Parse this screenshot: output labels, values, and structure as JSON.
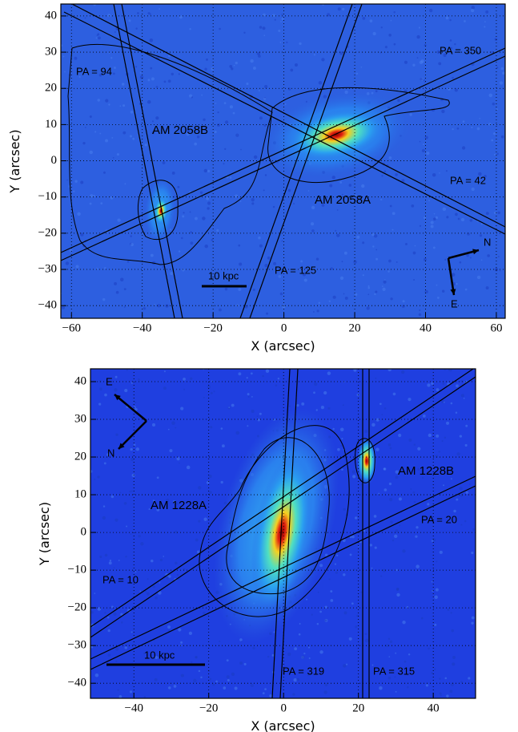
{
  "chart_data": [
    {
      "type": "image",
      "xlabel": "X (arcsec)",
      "ylabel": "Y (arcsec)",
      "grid": true,
      "xlim": [
        -63,
        62.5
      ],
      "ylim": [
        -43.5,
        43.3
      ],
      "xticks": [
        {
          "value": -60,
          "label": "−60"
        },
        {
          "value": -40,
          "label": "−40"
        },
        {
          "value": -20,
          "label": "−20"
        },
        0,
        20,
        40,
        60
      ],
      "yticks": [
        {
          "value": -40,
          "label": "−40"
        },
        {
          "value": -30,
          "label": "−30"
        },
        {
          "value": -20,
          "label": "−20"
        },
        {
          "value": -10,
          "label": "−10"
        },
        0,
        10,
        20,
        30,
        40
      ],
      "annotations": [
        "PA = 94",
        "PA = 350",
        "AM 2058B",
        "AM 2058A",
        "PA = 42",
        "PA = 125",
        "10 kpc",
        "N",
        "E"
      ]
    },
    {
      "type": "image",
      "xlabel": "X (arcsec)",
      "ylabel": "Y (arcsec)",
      "grid": true,
      "xlim": [
        -51.6,
        51.3
      ],
      "ylim": [
        -44,
        43.4
      ],
      "xticks": [
        {
          "value": -40,
          "label": "−40"
        },
        {
          "value": -20,
          "label": "−20"
        },
        0,
        20,
        40
      ],
      "yticks": [
        {
          "value": -40,
          "label": "−40"
        },
        {
          "value": -30,
          "label": "−30"
        },
        {
          "value": -20,
          "label": "−20"
        },
        {
          "value": -10,
          "label": "−10"
        },
        0,
        10,
        20,
        30,
        40
      ],
      "annotations": [
        "E",
        "N",
        "AM 1228A",
        "AM 1228B",
        "PA = 20",
        "PA = 10",
        "10 kpc",
        "PA = 319",
        "PA = 315"
      ]
    }
  ]
}
